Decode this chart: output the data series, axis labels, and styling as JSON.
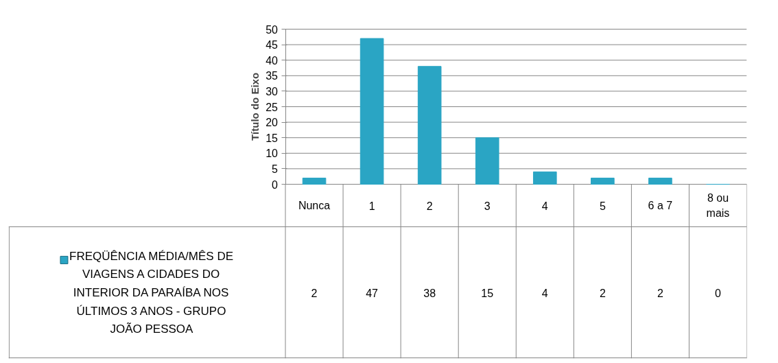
{
  "chart_data": {
    "type": "bar",
    "ylabel": "Título do Eixo",
    "categories": [
      "Nunca",
      "1",
      "2",
      "3",
      "4",
      "5",
      "6 a 7",
      "8 ou mais"
    ],
    "series": [
      {
        "name": "FREQÜÊNCIA MÉDIA/MÊS DE VIAGENS A CIDADES DO INTERIOR DA PARAÍBA NOS ÚLTIMOS 3 ANOS - GRUPO JOÃO PESSOA",
        "color": "#2aa5c4",
        "values": [
          2,
          47,
          38,
          15,
          4,
          2,
          2,
          0
        ]
      }
    ],
    "ylim": [
      0,
      50
    ],
    "yticks": [
      0,
      5,
      10,
      15,
      20,
      25,
      30,
      35,
      40,
      45,
      50
    ],
    "grid": "y",
    "legend": "bottom",
    "data_labels": true
  }
}
